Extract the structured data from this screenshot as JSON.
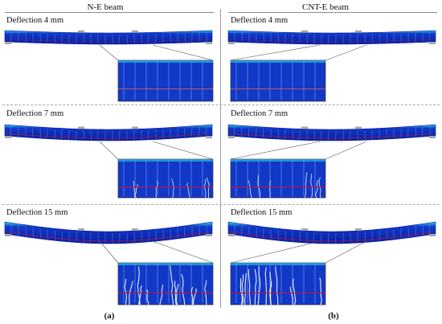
{
  "columns": [
    {
      "heading": "N-E beam",
      "tag": "(a)"
    },
    {
      "heading": "CNT-E beam",
      "tag": "(b)"
    }
  ],
  "stages": [
    {
      "label": "Deflection 4 mm",
      "deflection_mm": 4,
      "crack_severity": 0.2
    },
    {
      "label": "Deflection 7 mm",
      "deflection_mm": 7,
      "crack_severity": 0.55
    },
    {
      "label": "Deflection 15 mm",
      "deflection_mm": 15,
      "crack_severity": 1.0
    }
  ],
  "colors": {
    "beam_body": "#1238c8",
    "beam_edge": "#0a1fa0",
    "beam_top_light": "#27d3ee",
    "crack_line": "#9fd6f5",
    "rebar": "#c0143c",
    "support": "#a7a7a7",
    "leader": "#555555"
  }
}
